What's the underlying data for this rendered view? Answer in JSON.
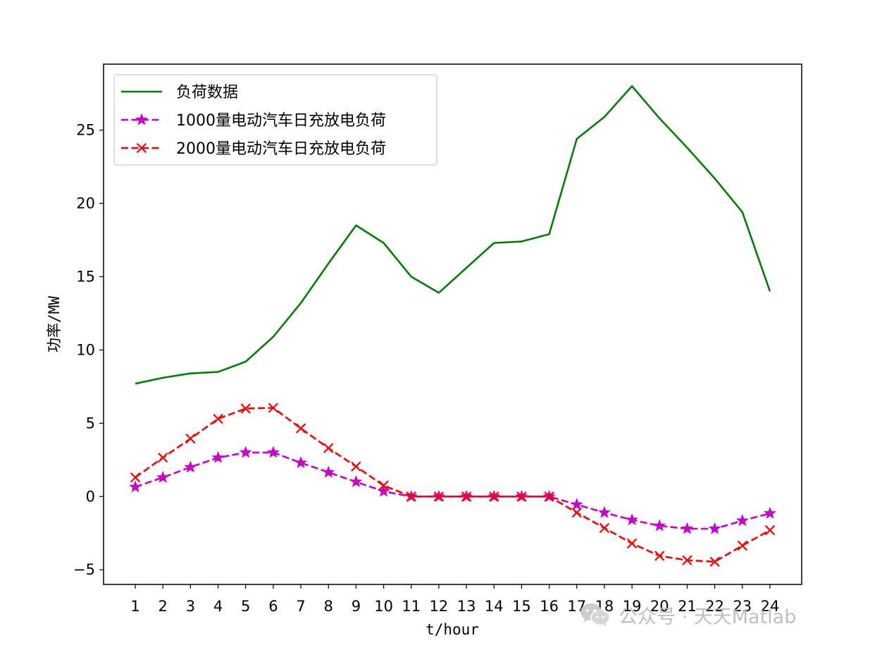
{
  "chart_data": {
    "type": "line",
    "title": "",
    "xlabel": "t/hour",
    "ylabel": "功率/MW",
    "x": [
      1,
      2,
      3,
      4,
      5,
      6,
      7,
      8,
      9,
      10,
      11,
      12,
      13,
      14,
      15,
      16,
      17,
      18,
      19,
      20,
      21,
      22,
      23,
      24
    ],
    "xticks": [
      "1",
      "2",
      "3",
      "4",
      "5",
      "6",
      "7",
      "8",
      "9",
      "10",
      "11",
      "12",
      "13",
      "14",
      "15",
      "16",
      "17",
      "18",
      "19",
      "20",
      "21",
      "22",
      "23",
      "24"
    ],
    "xlim": [
      -0.15,
      25.15
    ],
    "ylim": [
      -6,
      29.5
    ],
    "yticks": [
      -5,
      0,
      5,
      10,
      15,
      20,
      25
    ],
    "yticklabels": [
      "−5",
      "0",
      "5",
      "10",
      "15",
      "20",
      "25"
    ],
    "grid": false,
    "legend_position": "upper-left",
    "series": [
      {
        "name": "负荷数据",
        "color": "#008000",
        "linestyle": "solid",
        "marker": "none",
        "values": [
          7.7,
          8.1,
          8.4,
          8.5,
          9.2,
          10.9,
          13.2,
          15.9,
          18.5,
          17.3,
          15.0,
          13.9,
          15.6,
          17.3,
          17.4,
          17.9,
          24.4,
          25.9,
          28.0,
          25.8,
          23.8,
          21.7,
          19.4,
          14.0
        ]
      },
      {
        "name": "1000量电动汽车日充放电负荷",
        "color": "#cc00cc",
        "linestyle": "dashed",
        "marker": "star",
        "values": [
          0.65,
          1.3,
          2.0,
          2.65,
          3.0,
          3.0,
          2.3,
          1.65,
          1.0,
          0.35,
          0.0,
          0.0,
          0.0,
          0.0,
          0.0,
          0.0,
          -0.55,
          -1.1,
          -1.6,
          -2.0,
          -2.2,
          -2.2,
          -1.65,
          -1.15
        ]
      },
      {
        "name": "2000量电动汽车日充放电负荷",
        "color": "#ff0000",
        "linestyle": "dashed",
        "marker": "x",
        "values": [
          1.3,
          2.65,
          3.95,
          5.3,
          6.0,
          6.05,
          4.65,
          3.3,
          2.05,
          0.75,
          0.0,
          0.0,
          0.0,
          0.0,
          0.0,
          0.0,
          -1.1,
          -2.15,
          -3.2,
          -4.05,
          -4.35,
          -4.45,
          -3.35,
          -2.3
        ]
      }
    ]
  },
  "watermark": {
    "text": "公众号 · 天天Matlab",
    "icon": "wechat-icon"
  }
}
